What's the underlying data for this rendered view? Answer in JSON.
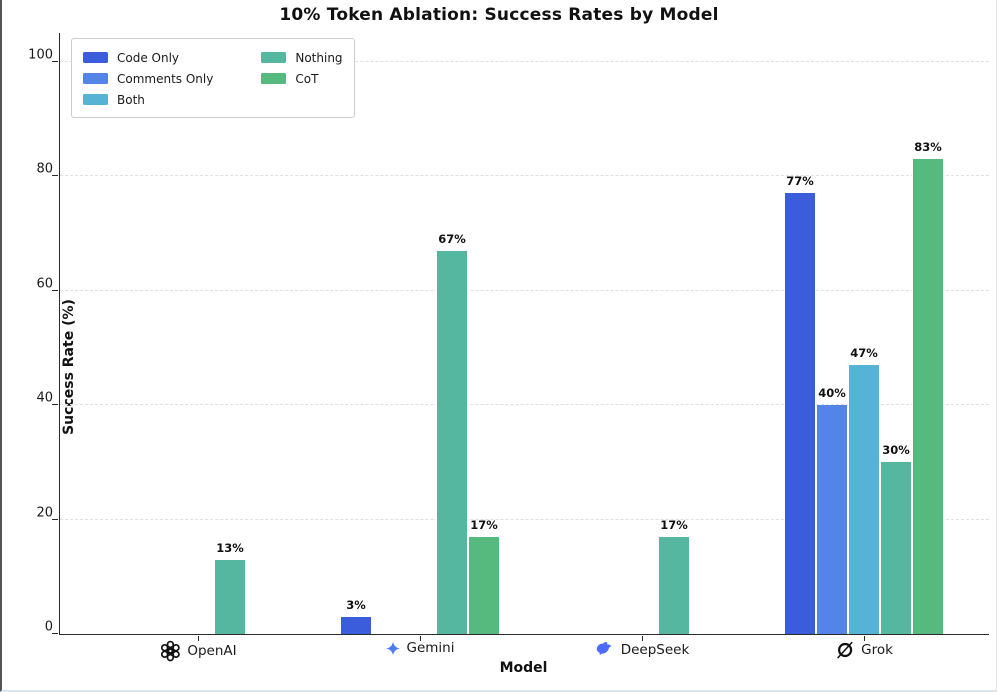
{
  "chart_data": {
    "type": "bar",
    "title": "10% Token Ablation: Success Rates by Model",
    "xlabel": "Model",
    "ylabel": "Success Rate (%)",
    "ylim": [
      0,
      105
    ],
    "yticks": [
      0,
      20,
      40,
      60,
      80,
      100
    ],
    "grid": "horizontal-dashed",
    "legend_position": "upper-left",
    "bar_label_format": "{value}%",
    "categories": [
      "OpenAI",
      "Gemini",
      "DeepSeek",
      "Grok"
    ],
    "category_icons": [
      "openai-logo",
      "gemini-logo",
      "deepseek-logo",
      "grok-logo"
    ],
    "series": [
      {
        "name": "Code Only",
        "color": "#3B5CDB",
        "values": [
          0,
          3,
          0,
          77
        ]
      },
      {
        "name": "Comments Only",
        "color": "#5484E8",
        "values": [
          0,
          0,
          0,
          40
        ]
      },
      {
        "name": "Both",
        "color": "#55B4D6",
        "values": [
          0,
          0,
          0,
          47
        ]
      },
      {
        "name": "Nothing",
        "color": "#55B79F",
        "values": [
          13,
          67,
          17,
          30
        ]
      },
      {
        "name": "CoT",
        "color": "#56B97E",
        "values": [
          0,
          17,
          0,
          83
        ]
      }
    ]
  }
}
